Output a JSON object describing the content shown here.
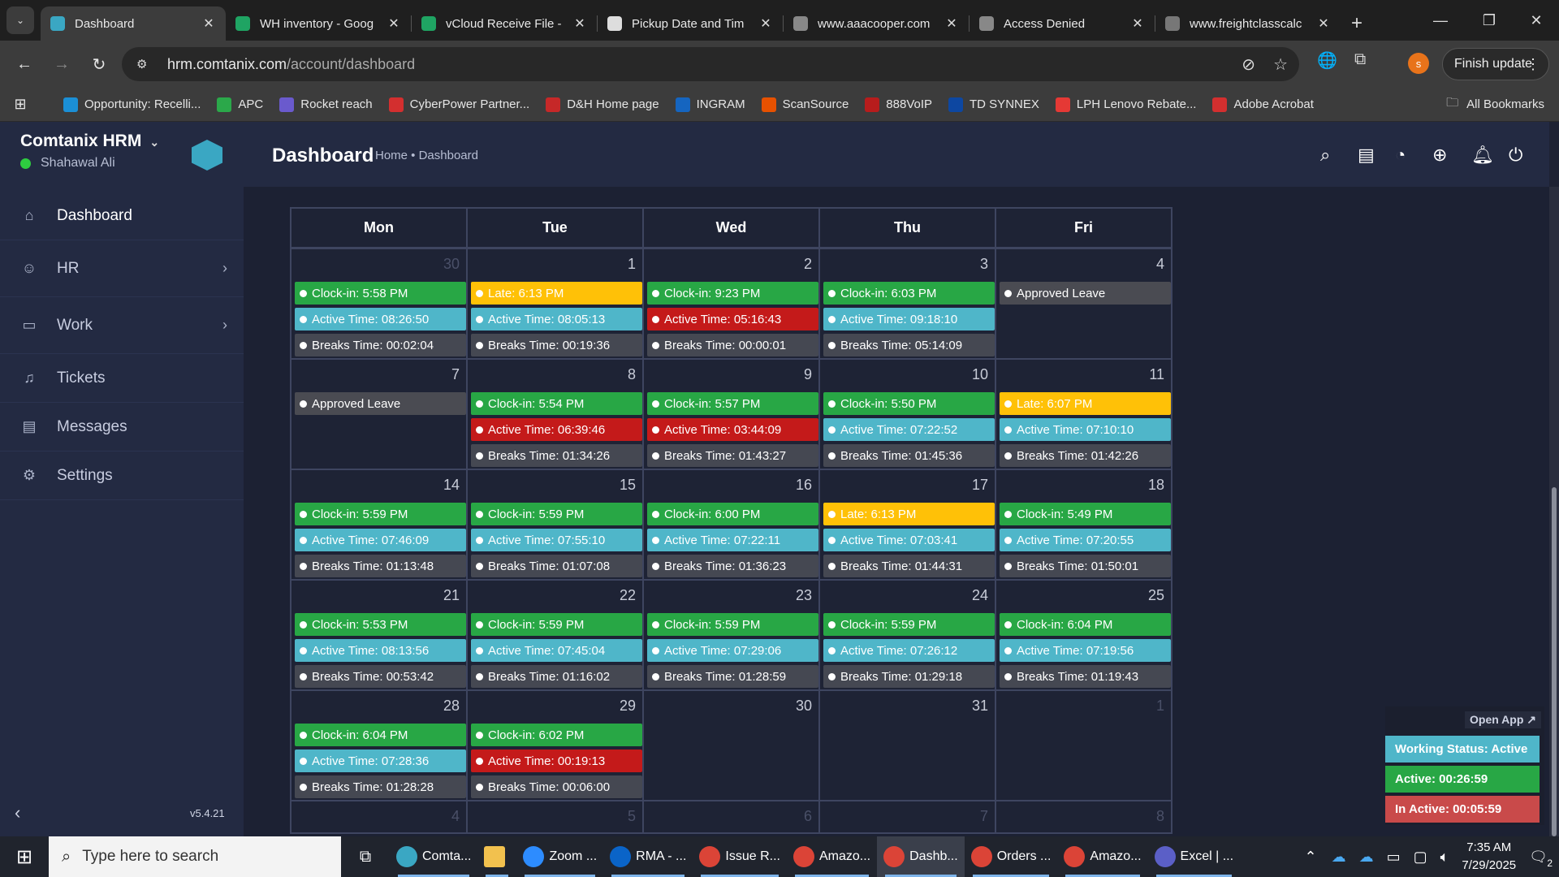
{
  "browser": {
    "tabs": [
      {
        "title": "Dashboard",
        "icon": "hrm-icon",
        "color": "#3aa7c3",
        "active": true
      },
      {
        "title": "WH inventory - Goog",
        "icon": "sheets-icon",
        "color": "#1fa463"
      },
      {
        "title": "vCloud Receive File -",
        "icon": "sheets-icon",
        "color": "#1fa463"
      },
      {
        "title": "Pickup Date and Tim",
        "icon": "chatgpt-icon",
        "color": "#dddddd"
      },
      {
        "title": "www.aaacooper.com",
        "icon": "aaa-icon",
        "color": "#888888"
      },
      {
        "title": "Access Denied",
        "icon": "globe-icon",
        "color": "#888888"
      },
      {
        "title": "www.freightclasscalc",
        "icon": "fcc-icon",
        "color": "#777777"
      }
    ],
    "url_host": "hrm.comtanix.com",
    "url_path": "/account/dashboard",
    "finish_update": "Finish update",
    "profile_initial": "s",
    "bookmarks": [
      {
        "label": "Opportunity: Recelli...",
        "color": "#1b8fd6"
      },
      {
        "label": "APC",
        "color": "#2ba84a"
      },
      {
        "label": "Rocket reach",
        "color": "#6a5acd"
      },
      {
        "label": "CyberPower Partner...",
        "color": "#d32f2f"
      },
      {
        "label": "D&H Home page",
        "color": "#c62828"
      },
      {
        "label": "INGRAM",
        "color": "#1565c0"
      },
      {
        "label": "ScanSource",
        "color": "#e65100"
      },
      {
        "label": "888VoIP",
        "color": "#b71c1c"
      },
      {
        "label": "TD SYNNEX",
        "color": "#0d47a1"
      },
      {
        "label": "LPH Lenovo Rebate...",
        "color": "#e53935"
      },
      {
        "label": "Adobe Acrobat",
        "color": "#d32f2f"
      }
    ],
    "all_bookmarks": "All Bookmarks"
  },
  "sidebar": {
    "brand": "Comtanix HRM",
    "user": "Shahawal Ali",
    "menu": [
      {
        "label": "Dashboard",
        "icon": "home-icon"
      },
      {
        "label": "HR",
        "icon": "users-icon"
      },
      {
        "label": "Work",
        "icon": "briefcase-icon"
      },
      {
        "label": "Tickets",
        "icon": "headset-icon"
      },
      {
        "label": "Messages",
        "icon": "message-icon"
      },
      {
        "label": "Settings",
        "icon": "gear-icon"
      }
    ],
    "version": "v5.4.21"
  },
  "header": {
    "title": "Dashboard",
    "breadcrumb": "Home • Dashboard"
  },
  "colors": {
    "clockin": "#28a745",
    "late": "#ffc107",
    "active_ok": "#4fb6c9",
    "active_low": "#c41a1a",
    "breaks": "#454852",
    "leave": "#4a4b52"
  },
  "calendar": {
    "days": [
      "Mon",
      "Tue",
      "Wed",
      "Thu",
      "Fri"
    ],
    "weeks": [
      [
        {
          "day": "30",
          "muted": true,
          "events": [
            {
              "type": "clockin",
              "text": "Clock-in: 5:58 PM"
            },
            {
              "type": "active_ok",
              "text": "Active Time: 08:26:50"
            },
            {
              "type": "breaks",
              "text": "Breaks Time: 00:02:04"
            }
          ]
        },
        {
          "day": "1",
          "events": [
            {
              "type": "late",
              "text": "Late: 6:13 PM"
            },
            {
              "type": "active_ok",
              "text": "Active Time: 08:05:13"
            },
            {
              "type": "breaks",
              "text": "Breaks Time: 00:19:36"
            }
          ]
        },
        {
          "day": "2",
          "events": [
            {
              "type": "clockin",
              "text": "Clock-in: 9:23 PM"
            },
            {
              "type": "active_low",
              "text": "Active Time: 05:16:43"
            },
            {
              "type": "breaks",
              "text": "Breaks Time: 00:00:01"
            }
          ]
        },
        {
          "day": "3",
          "events": [
            {
              "type": "clockin",
              "text": "Clock-in: 6:03 PM"
            },
            {
              "type": "active_ok",
              "text": "Active Time: 09:18:10"
            },
            {
              "type": "breaks",
              "text": "Breaks Time: 05:14:09"
            }
          ]
        },
        {
          "day": "4",
          "events": [
            {
              "type": "leave",
              "text": "Approved Leave"
            }
          ]
        }
      ],
      [
        {
          "day": "7",
          "events": [
            {
              "type": "leave",
              "text": "Approved Leave"
            }
          ]
        },
        {
          "day": "8",
          "events": [
            {
              "type": "clockin",
              "text": "Clock-in: 5:54 PM"
            },
            {
              "type": "active_low",
              "text": "Active Time: 06:39:46"
            },
            {
              "type": "breaks",
              "text": "Breaks Time: 01:34:26"
            }
          ]
        },
        {
          "day": "9",
          "events": [
            {
              "type": "clockin",
              "text": "Clock-in: 5:57 PM"
            },
            {
              "type": "active_low",
              "text": "Active Time: 03:44:09"
            },
            {
              "type": "breaks",
              "text": "Breaks Time: 01:43:27"
            }
          ]
        },
        {
          "day": "10",
          "events": [
            {
              "type": "clockin",
              "text": "Clock-in: 5:50 PM"
            },
            {
              "type": "active_ok",
              "text": "Active Time: 07:22:52"
            },
            {
              "type": "breaks",
              "text": "Breaks Time: 01:45:36"
            }
          ]
        },
        {
          "day": "11",
          "events": [
            {
              "type": "late",
              "text": "Late: 6:07 PM"
            },
            {
              "type": "active_ok",
              "text": "Active Time: 07:10:10"
            },
            {
              "type": "breaks",
              "text": "Breaks Time: 01:42:26"
            }
          ]
        }
      ],
      [
        {
          "day": "14",
          "events": [
            {
              "type": "clockin",
              "text": "Clock-in: 5:59 PM"
            },
            {
              "type": "active_ok",
              "text": "Active Time: 07:46:09"
            },
            {
              "type": "breaks",
              "text": "Breaks Time: 01:13:48"
            }
          ]
        },
        {
          "day": "15",
          "events": [
            {
              "type": "clockin",
              "text": "Clock-in: 5:59 PM"
            },
            {
              "type": "active_ok",
              "text": "Active Time: 07:55:10"
            },
            {
              "type": "breaks",
              "text": "Breaks Time: 01:07:08"
            }
          ]
        },
        {
          "day": "16",
          "events": [
            {
              "type": "clockin",
              "text": "Clock-in: 6:00 PM"
            },
            {
              "type": "active_ok",
              "text": "Active Time: 07:22:11"
            },
            {
              "type": "breaks",
              "text": "Breaks Time: 01:36:23"
            }
          ]
        },
        {
          "day": "17",
          "events": [
            {
              "type": "late",
              "text": "Late: 6:13 PM"
            },
            {
              "type": "active_ok",
              "text": "Active Time: 07:03:41"
            },
            {
              "type": "breaks",
              "text": "Breaks Time: 01:44:31"
            }
          ]
        },
        {
          "day": "18",
          "events": [
            {
              "type": "clockin",
              "text": "Clock-in: 5:49 PM"
            },
            {
              "type": "active_ok",
              "text": "Active Time: 07:20:55"
            },
            {
              "type": "breaks",
              "text": "Breaks Time: 01:50:01"
            }
          ]
        }
      ],
      [
        {
          "day": "21",
          "events": [
            {
              "type": "clockin",
              "text": "Clock-in: 5:53 PM"
            },
            {
              "type": "active_ok",
              "text": "Active Time: 08:13:56"
            },
            {
              "type": "breaks",
              "text": "Breaks Time: 00:53:42"
            }
          ]
        },
        {
          "day": "22",
          "events": [
            {
              "type": "clockin",
              "text": "Clock-in: 5:59 PM"
            },
            {
              "type": "active_ok",
              "text": "Active Time: 07:45:04"
            },
            {
              "type": "breaks",
              "text": "Breaks Time: 01:16:02"
            }
          ]
        },
        {
          "day": "23",
          "events": [
            {
              "type": "clockin",
              "text": "Clock-in: 5:59 PM"
            },
            {
              "type": "active_ok",
              "text": "Active Time: 07:29:06"
            },
            {
              "type": "breaks",
              "text": "Breaks Time: 01:28:59"
            }
          ]
        },
        {
          "day": "24",
          "events": [
            {
              "type": "clockin",
              "text": "Clock-in: 5:59 PM"
            },
            {
              "type": "active_ok",
              "text": "Active Time: 07:26:12"
            },
            {
              "type": "breaks",
              "text": "Breaks Time: 01:29:18"
            }
          ]
        },
        {
          "day": "25",
          "events": [
            {
              "type": "clockin",
              "text": "Clock-in: 6:04 PM"
            },
            {
              "type": "active_ok",
              "text": "Active Time: 07:19:56"
            },
            {
              "type": "breaks",
              "text": "Breaks Time: 01:19:43"
            }
          ]
        }
      ],
      [
        {
          "day": "28",
          "events": [
            {
              "type": "clockin",
              "text": "Clock-in: 6:04 PM"
            },
            {
              "type": "active_ok",
              "text": "Active Time: 07:28:36"
            },
            {
              "type": "breaks",
              "text": "Breaks Time: 01:28:28"
            }
          ]
        },
        {
          "day": "29",
          "events": [
            {
              "type": "clockin",
              "text": "Clock-in: 6:02 PM"
            },
            {
              "type": "active_low",
              "text": "Active Time: 00:19:13"
            },
            {
              "type": "breaks",
              "text": "Breaks Time: 00:06:00"
            }
          ]
        },
        {
          "day": "30",
          "events": []
        },
        {
          "day": "31",
          "events": []
        },
        {
          "day": "1",
          "muted": true,
          "events": []
        }
      ],
      [
        {
          "day": "4",
          "muted": true,
          "events": []
        },
        {
          "day": "5",
          "muted": true,
          "events": []
        },
        {
          "day": "6",
          "muted": true,
          "events": []
        },
        {
          "day": "7",
          "muted": true,
          "events": []
        },
        {
          "day": "8",
          "muted": true,
          "events": []
        }
      ]
    ]
  },
  "widget": {
    "open_app": "Open App ↗",
    "working_status": "Working Status: Active",
    "active": "Active: 00:26:59",
    "inactive": "In Active: 00:05:59",
    "colors": {
      "status": "#4fb6c9",
      "active": "#28a745",
      "inactive": "#c94a4a"
    }
  },
  "taskbar": {
    "search_placeholder": "Type here to search",
    "apps": [
      {
        "label": "Comta...",
        "icon": "hrm-icon",
        "color": "#3aa7c3"
      },
      {
        "label": "",
        "icon": "folder-icon",
        "color": "#f2c14e"
      },
      {
        "label": "Zoom ...",
        "icon": "zoom-icon",
        "color": "#2d8cff"
      },
      {
        "label": "RMA - ...",
        "icon": "outlook-icon",
        "color": "#0a64c8"
      },
      {
        "label": "Issue R...",
        "icon": "chrome-icon",
        "color": "#db4437"
      },
      {
        "label": "Amazo...",
        "icon": "chrome-icon",
        "color": "#db4437"
      },
      {
        "label": "Dashb...",
        "icon": "chrome-icon",
        "color": "#db4437",
        "active": true
      },
      {
        "label": "Orders ...",
        "icon": "chrome-icon",
        "color": "#db4437"
      },
      {
        "label": "Amazo...",
        "icon": "chrome-icon",
        "color": "#db4437"
      },
      {
        "label": "Excel | ...",
        "icon": "teams-icon",
        "color": "#5b5fc7"
      }
    ],
    "time": "7:35 AM",
    "date": "7/29/2025",
    "notifications": "2"
  }
}
